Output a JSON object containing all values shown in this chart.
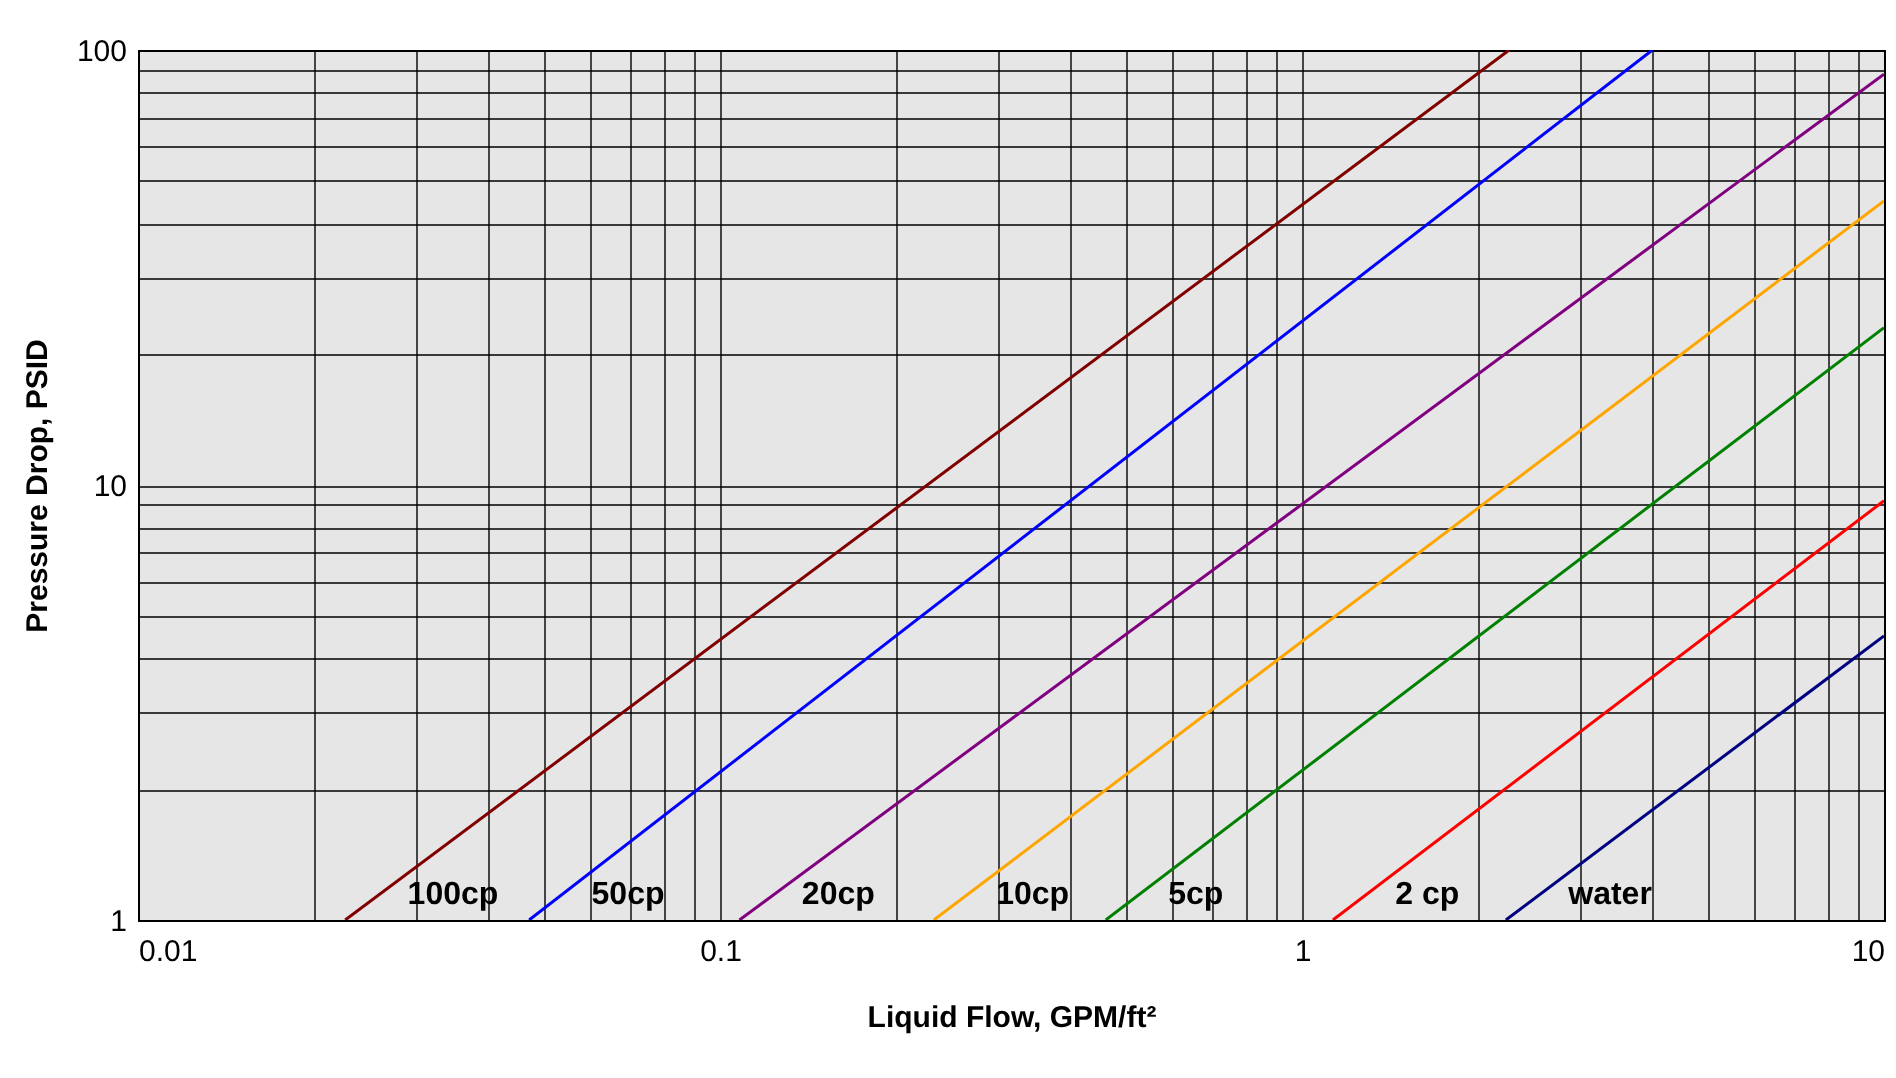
{
  "chart_data": {
    "type": "line",
    "xlabel": "Liquid Flow, GPM/ft²",
    "ylabel": "Pressure Drop, PSID",
    "log": "xy",
    "grid": true,
    "legend": false,
    "xlim": [
      0.01,
      10
    ],
    "ylim": [
      1,
      100
    ],
    "xticks": [
      0.01,
      0.1,
      1,
      10
    ],
    "yticks": [
      1,
      10,
      100
    ],
    "series": [
      {
        "name": "100cp",
        "color": "#800000",
        "x": [
          0.0227,
          2.27
        ],
        "values": [
          1,
          100
        ]
      },
      {
        "name": "50cp",
        "color": "#0000ff",
        "x": [
          0.047,
          4.0
        ],
        "values": [
          1,
          100
        ]
      },
      {
        "name": "20cp",
        "color": "#800080",
        "x": [
          0.108,
          10
        ],
        "values": [
          1,
          88
        ]
      },
      {
        "name": "10cp",
        "color": "#ffa500",
        "x": [
          0.233,
          10
        ],
        "values": [
          1,
          45
        ]
      },
      {
        "name": "5cp",
        "color": "#008000",
        "x": [
          0.46,
          10
        ],
        "values": [
          1,
          23
        ]
      },
      {
        "name": "2 cp",
        "color": "#ff0000",
        "x": [
          1.13,
          10
        ],
        "values": [
          1,
          9.2
        ]
      },
      {
        "name": "water",
        "color": "#000080",
        "x": [
          2.24,
          10
        ],
        "values": [
          1,
          4.5
        ]
      }
    ]
  }
}
